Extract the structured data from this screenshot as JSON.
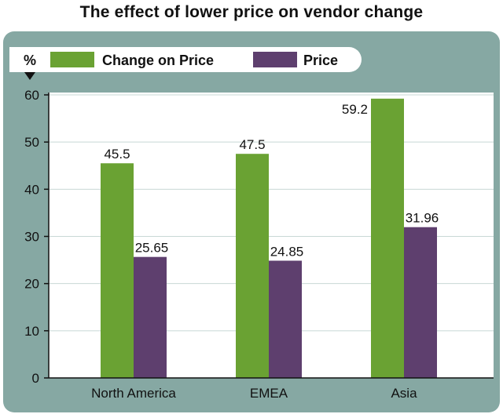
{
  "colors": {
    "change_on_price": "#6aa233",
    "price": "#5e3f6e",
    "panel": "#86a8a3",
    "plot_bg": "#ffffff",
    "gridline": "#c8d8d5"
  },
  "chart_data": {
    "type": "bar",
    "title": "The effect of lower price on vendor change",
    "ylabel": "%",
    "xlabel": "",
    "categories": [
      "North America",
      "EMEA",
      "Asia"
    ],
    "series": [
      {
        "name": "Change on Price",
        "values": [
          45.5,
          47.5,
          59.2
        ],
        "labels": [
          "45.5",
          "47.5",
          "59.2"
        ]
      },
      {
        "name": "Price",
        "values": [
          25.65,
          24.85,
          31.96
        ],
        "labels": [
          "25.65",
          "24.85",
          "31.96"
        ]
      }
    ],
    "ylim": [
      0,
      60
    ],
    "yticks": [
      "0",
      "10",
      "20",
      "30",
      "40",
      "50",
      "60"
    ],
    "grid": true,
    "legend_position": "top"
  }
}
